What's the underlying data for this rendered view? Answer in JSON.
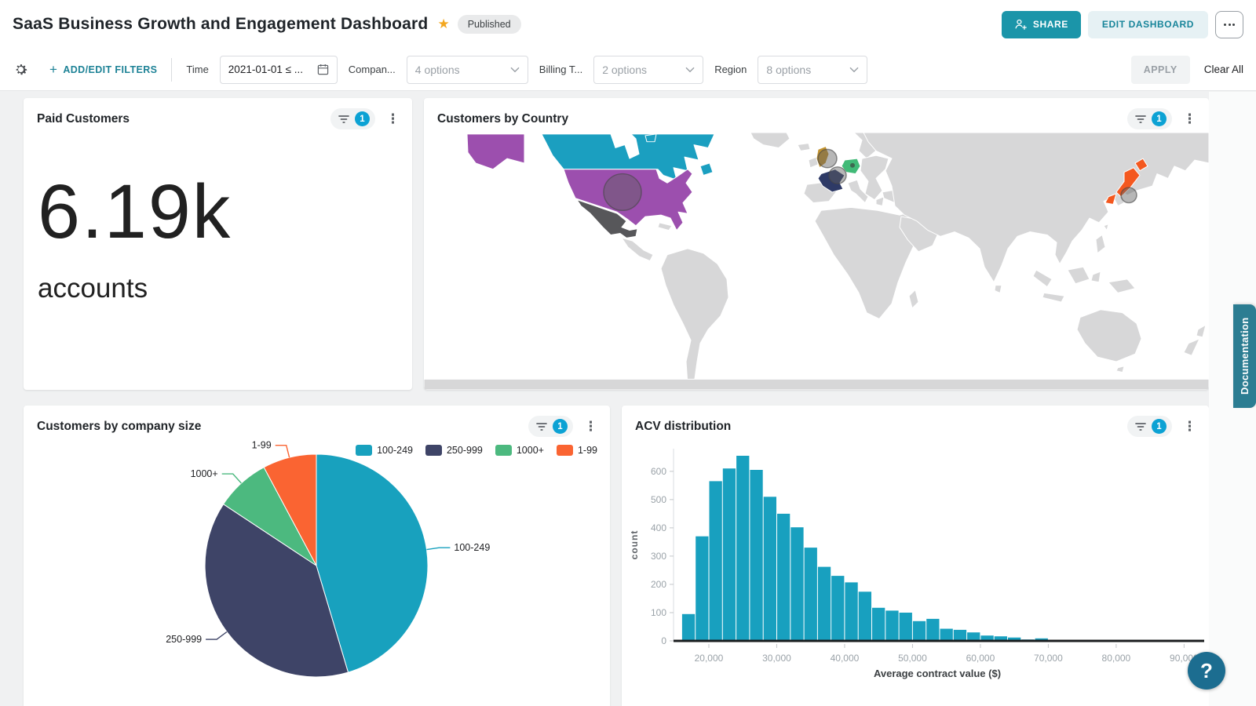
{
  "header": {
    "title": "SaaS Business Growth and Engagement Dashboard",
    "published_badge": "Published",
    "share_label": "SHARE",
    "edit_label": "EDIT DASHBOARD"
  },
  "filter_bar": {
    "add_edit_label": "ADD/EDIT FILTERS",
    "filters": [
      {
        "label": "Time",
        "value": "2021-01-01 ≤ ..."
      },
      {
        "label": "Compan...",
        "value": "4 options"
      },
      {
        "label": "Billing T...",
        "value": "2 options"
      },
      {
        "label": "Region",
        "value": "8 options"
      }
    ],
    "apply_label": "APPLY",
    "clear_label": "Clear All"
  },
  "tiles": {
    "kpi": {
      "title": "Paid Customers",
      "value": "6.19k",
      "unit": "accounts",
      "filter_count": "1"
    },
    "map": {
      "title": "Customers by Country",
      "filter_count": "1"
    },
    "pie": {
      "title": "Customers by company size",
      "filter_count": "1"
    },
    "hist": {
      "title": "ACV distribution",
      "filter_count": "1"
    }
  },
  "side": {
    "documentation_label": "Documentation",
    "help_label": "?"
  },
  "chart_data": [
    {
      "id": "paid-customers-kpi",
      "type": "single_value",
      "title": "Paid Customers",
      "value": 6190,
      "display_value": "6.19k",
      "unit": "accounts"
    },
    {
      "id": "customers-by-country",
      "type": "map",
      "title": "Customers by Country",
      "no_data_color": "#d7d7d8",
      "highlighted": [
        {
          "key": "canada",
          "country": "Canada",
          "color": "#1b9fc0"
        },
        {
          "key": "usa",
          "country": "United States",
          "color": "#9c4fae",
          "marker": "large-circle"
        },
        {
          "key": "mexico",
          "country": "Mexico",
          "color": "#57575a"
        },
        {
          "key": "uk",
          "country": "United Kingdom",
          "color": "#c2922e",
          "marker": "circle"
        },
        {
          "key": "france",
          "country": "France",
          "color": "#2e3a66",
          "marker": "circle"
        },
        {
          "key": "germany",
          "country": "Germany",
          "color": "#41ba77",
          "marker": "dot"
        },
        {
          "key": "japan",
          "country": "Japan",
          "color": "#f4581f",
          "marker": "circle"
        }
      ]
    },
    {
      "id": "customers-by-company-size",
      "type": "pie",
      "title": "Customers by company size",
      "labels": [
        "100-249",
        "250-999",
        "1000+",
        "1-99"
      ],
      "values_pct": [
        45.4,
        38.9,
        7.9,
        7.8
      ],
      "colors": [
        "#18a1be",
        "#3e4467",
        "#4cb97f",
        "#fa6432"
      ],
      "legend_position": "top-right"
    },
    {
      "id": "acv-distribution",
      "type": "bar",
      "title": "ACV distribution",
      "xlabel": "Average contract value ($)",
      "ylabel": "count",
      "color": "#18a0bf",
      "bin_start": 16000,
      "bin_width": 2000,
      "values": [
        95,
        370,
        565,
        610,
        655,
        605,
        510,
        450,
        402,
        330,
        262,
        230,
        207,
        174,
        117,
        107,
        100,
        70,
        78,
        43,
        39,
        30,
        19,
        16,
        12,
        5,
        9,
        0,
        4
      ],
      "x_ticks": [
        20000,
        30000,
        40000,
        50000,
        60000,
        70000,
        80000,
        90000
      ],
      "y_ticks": [
        0,
        100,
        200,
        300,
        400,
        500,
        600
      ],
      "xlim": [
        14800,
        92500
      ],
      "ylim": [
        0,
        680
      ],
      "grid": false,
      "legend": false
    }
  ]
}
